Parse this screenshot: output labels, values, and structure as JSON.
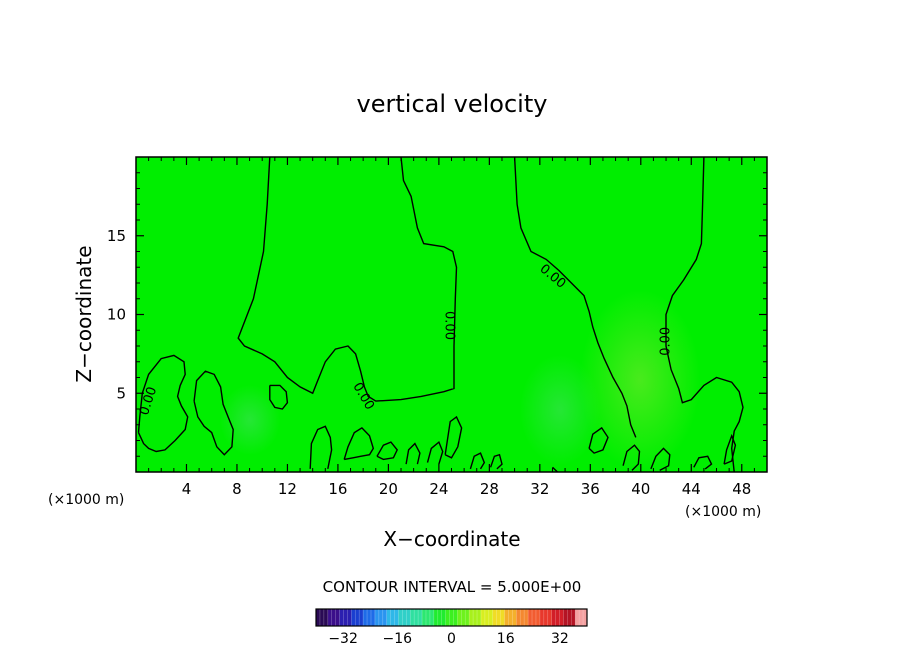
{
  "chart_data": {
    "type": "contour",
    "title": "vertical velocity",
    "xlabel": "X−coordinate",
    "ylabel": "Z−coordinate",
    "x_unit_label": "(×1000 m)",
    "y_unit_label": "(×1000 m)",
    "xlim": [
      0,
      50
    ],
    "ylim": [
      0,
      20
    ],
    "x_ticks": [
      4,
      8,
      12,
      16,
      20,
      24,
      28,
      32,
      36,
      40,
      44,
      48
    ],
    "y_ticks": [
      5,
      10,
      15
    ],
    "contour_interval_text": "CONTOUR INTERVAL = 5.000E+00",
    "contour_labels": [
      {
        "text": "0.00",
        "x": 1.0,
        "y": 4.5,
        "angle": -72
      },
      {
        "text": "0.00",
        "x": 18.0,
        "y": 4.8,
        "angle": 60
      },
      {
        "text": "0.00",
        "x": 24.8,
        "y": 9.3,
        "angle": 90
      },
      {
        "text": "0.00",
        "x": 33.0,
        "y": 12.4,
        "angle": 40
      },
      {
        "text": "0.00",
        "x": 42.0,
        "y": 8.3,
        "angle": -90
      }
    ],
    "zero_contours": [
      [
        [
          10.6,
          20
        ],
        [
          10.4,
          17
        ],
        [
          10.1,
          14
        ],
        [
          9.3,
          11
        ],
        [
          8.1,
          8.5
        ],
        [
          8.6,
          8
        ],
        [
          10,
          7.5
        ],
        [
          11,
          7
        ],
        [
          12,
          6
        ],
        [
          13,
          5.4
        ],
        [
          14,
          5
        ],
        [
          14.4,
          5.8
        ],
        [
          15,
          7
        ],
        [
          15.8,
          7.8
        ],
        [
          16.8,
          8
        ],
        [
          17.4,
          7.5
        ],
        [
          17.8,
          6.4
        ],
        [
          18.1,
          5.4
        ],
        [
          18.4,
          4.8
        ],
        [
          19.0,
          4.5
        ],
        [
          21,
          4.6
        ],
        [
          22.6,
          4.8
        ],
        [
          24.4,
          5.1
        ],
        [
          25.2,
          5.3
        ],
        [
          25.2,
          8
        ],
        [
          25.3,
          11
        ],
        [
          25.4,
          13
        ],
        [
          25.1,
          14
        ],
        [
          24.4,
          14.3
        ],
        [
          22.8,
          14.5
        ],
        [
          22.3,
          15.5
        ],
        [
          21.8,
          17.5
        ],
        [
          21.2,
          18.5
        ],
        [
          21.0,
          20
        ]
      ],
      [
        [
          30.0,
          20
        ],
        [
          30.2,
          17
        ],
        [
          30.5,
          15.5
        ],
        [
          31.3,
          14
        ],
        [
          32.5,
          13.5
        ],
        [
          33.5,
          12.8
        ],
        [
          34.5,
          12
        ],
        [
          35.5,
          11.2
        ],
        [
          35.9,
          10.2
        ],
        [
          36.2,
          9.2
        ],
        [
          36.6,
          8.2
        ],
        [
          37.1,
          7.2
        ],
        [
          37.8,
          6
        ],
        [
          38.5,
          5
        ],
        [
          38.9,
          4.2
        ],
        [
          39.2,
          3
        ],
        [
          39.6,
          2.2
        ]
      ],
      [
        [
          45.0,
          20
        ],
        [
          44.9,
          17
        ],
        [
          44.8,
          14.5
        ],
        [
          44.4,
          13.5
        ],
        [
          43.4,
          12.2
        ],
        [
          42.5,
          11.2
        ],
        [
          42.0,
          10
        ],
        [
          42.0,
          8
        ],
        [
          42.4,
          6.5
        ],
        [
          43.0,
          5.3
        ],
        [
          43.3,
          4.4
        ],
        [
          44,
          4.6
        ],
        [
          45,
          5.5
        ],
        [
          46,
          6.0
        ],
        [
          47.2,
          5.7
        ],
        [
          47.8,
          5.1
        ],
        [
          48.1,
          4.1
        ],
        [
          47.8,
          3.2
        ],
        [
          47.4,
          2.6
        ],
        [
          47.2,
          1.5
        ],
        [
          47.4,
          0
        ]
      ],
      [
        [
          0.2,
          2.5
        ],
        [
          0.3,
          3.5
        ],
        [
          0.5,
          5
        ],
        [
          1,
          6.2
        ],
        [
          2,
          7.2
        ],
        [
          3,
          7.4
        ],
        [
          3.8,
          7.0
        ],
        [
          3.9,
          6.2
        ],
        [
          3.5,
          5.5
        ],
        [
          3.3,
          4.8
        ],
        [
          3.6,
          4.2
        ],
        [
          4.1,
          3.5
        ],
        [
          3.9,
          2.7
        ],
        [
          3.1,
          2.0
        ],
        [
          2.3,
          1.4
        ],
        [
          1.6,
          1.3
        ],
        [
          1.0,
          1.5
        ],
        [
          0.6,
          1.8
        ],
        [
          0.2,
          2.5
        ]
      ],
      [
        [
          4.6,
          4.5
        ],
        [
          4.8,
          5.8
        ],
        [
          5.5,
          6.4
        ],
        [
          6.2,
          6.2
        ],
        [
          6.7,
          5.4
        ],
        [
          6.9,
          4.3
        ],
        [
          7.3,
          3.5
        ],
        [
          7.7,
          2.7
        ],
        [
          7.6,
          1.6
        ],
        [
          7.0,
          1.1
        ],
        [
          6.4,
          1.6
        ],
        [
          6.0,
          2.5
        ],
        [
          5.4,
          2.9
        ],
        [
          4.9,
          3.5
        ],
        [
          4.6,
          4.5
        ]
      ],
      [
        [
          10.6,
          5.5
        ],
        [
          11.4,
          5.5
        ],
        [
          11.9,
          5.1
        ],
        [
          12.0,
          4.4
        ],
        [
          11.6,
          4.0
        ],
        [
          11.0,
          4.1
        ],
        [
          10.6,
          4.6
        ],
        [
          10.6,
          5.5
        ]
      ],
      [
        [
          13.8,
          0.2
        ],
        [
          13.9,
          1.8
        ],
        [
          14.4,
          2.7
        ],
        [
          15.0,
          2.9
        ],
        [
          15.4,
          2.2
        ],
        [
          15.5,
          1.4
        ],
        [
          15.2,
          0.2
        ]
      ],
      [
        [
          16.5,
          0.8
        ],
        [
          16.8,
          1.6
        ],
        [
          17.3,
          2.5
        ],
        [
          17.9,
          2.8
        ],
        [
          18.5,
          2.3
        ],
        [
          18.8,
          1.5
        ],
        [
          18.5,
          1.1
        ],
        [
          17.8,
          1.0
        ],
        [
          17.2,
          0.9
        ],
        [
          16.5,
          0.8
        ]
      ],
      [
        [
          19.1,
          1.0
        ],
        [
          19.6,
          1.7
        ],
        [
          20.2,
          1.9
        ],
        [
          20.7,
          1.4
        ],
        [
          20.4,
          0.9
        ],
        [
          19.6,
          0.8
        ],
        [
          19.1,
          1.0
        ]
      ],
      [
        [
          21.4,
          0.5
        ],
        [
          21.6,
          1.4
        ],
        [
          22.1,
          1.8
        ],
        [
          22.5,
          1.2
        ],
        [
          22.3,
          0.5
        ]
      ],
      [
        [
          23.1,
          0.6
        ],
        [
          23.4,
          1.5
        ],
        [
          24.0,
          1.9
        ],
        [
          24.3,
          1.3
        ],
        [
          24.0,
          0.5
        ]
      ],
      [
        [
          24.5,
          1.1
        ],
        [
          24.9,
          3.2
        ],
        [
          25.4,
          3.5
        ],
        [
          25.8,
          2.8
        ],
        [
          25.5,
          1.6
        ],
        [
          25.0,
          0.9
        ],
        [
          24.5,
          1.1
        ]
      ],
      [
        [
          26.5,
          0.2
        ],
        [
          26.8,
          1.0
        ],
        [
          27.3,
          1.2
        ],
        [
          27.6,
          0.6
        ],
        [
          27.3,
          0.2
        ]
      ],
      [
        [
          28.1,
          0.3
        ],
        [
          28.4,
          1.0
        ],
        [
          28.8,
          1.1
        ],
        [
          29.0,
          0.5
        ],
        [
          28.6,
          0.2
        ]
      ],
      [
        [
          33.0,
          0.3
        ],
        [
          33.4,
          0.0
        ]
      ],
      [
        [
          38.6,
          0.4
        ],
        [
          38.9,
          1.3
        ],
        [
          39.5,
          1.7
        ],
        [
          39.9,
          1.3
        ],
        [
          39.8,
          0.5
        ],
        [
          39.3,
          0.1
        ]
      ],
      [
        [
          40.8,
          0.2
        ],
        [
          41.2,
          1.0
        ],
        [
          41.8,
          1.5
        ],
        [
          42.3,
          1.1
        ],
        [
          42.2,
          0.4
        ],
        [
          41.5,
          0.1
        ]
      ],
      [
        [
          44.2,
          0.3
        ],
        [
          44.6,
          0.9
        ],
        [
          45.3,
          1.0
        ],
        [
          45.6,
          0.5
        ],
        [
          45.1,
          0.2
        ]
      ],
      [
        [
          46.6,
          0.5
        ],
        [
          46.8,
          1.4
        ],
        [
          47.2,
          2.3
        ],
        [
          47.5,
          1.7
        ],
        [
          47.2,
          0.7
        ],
        [
          46.6,
          0.5
        ]
      ],
      [
        [
          35.9,
          1.5
        ],
        [
          36.2,
          2.4
        ],
        [
          36.9,
          2.8
        ],
        [
          37.4,
          2.2
        ],
        [
          37.0,
          1.4
        ],
        [
          36.3,
          1.2
        ],
        [
          35.9,
          1.5
        ]
      ]
    ],
    "colorbar": {
      "ticks": [
        -32,
        -16,
        0,
        16,
        32
      ],
      "range": [
        -40,
        40
      ],
      "colors": [
        "#2a0a55",
        "#3b0f8a",
        "#2b1fb0",
        "#1a3fd0",
        "#1e6be8",
        "#2a94f0",
        "#2fb8e8",
        "#30d0c8",
        "#30e0a0",
        "#2ce870",
        "#20ec30",
        "#3cf020",
        "#6ef21c",
        "#a8f01c",
        "#d8ee20",
        "#f0dc26",
        "#f4b02c",
        "#f48830",
        "#f25c30",
        "#e8382c",
        "#d21e28",
        "#b41424",
        "#f4a0a0"
      ]
    },
    "field_color": "#00ee00"
  }
}
